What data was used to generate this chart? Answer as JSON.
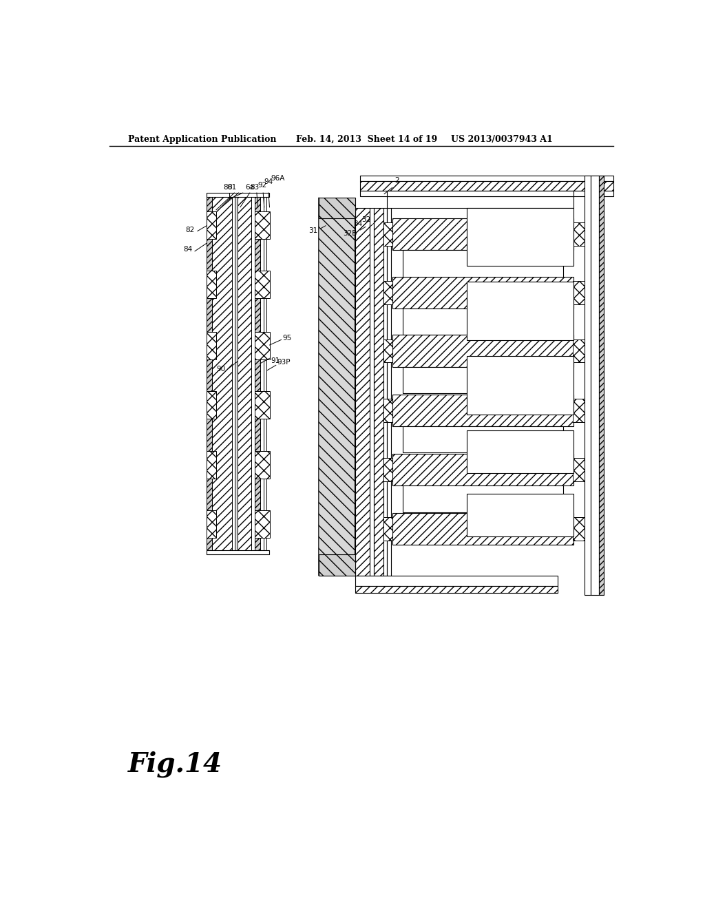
{
  "bg_color": "#ffffff",
  "header_left": "Patent Application Publication",
  "header_mid": "Feb. 14, 2013  Sheet 14 of 19",
  "header_right": "US 2013/0037943 A1",
  "fig_label": "Fig.14"
}
